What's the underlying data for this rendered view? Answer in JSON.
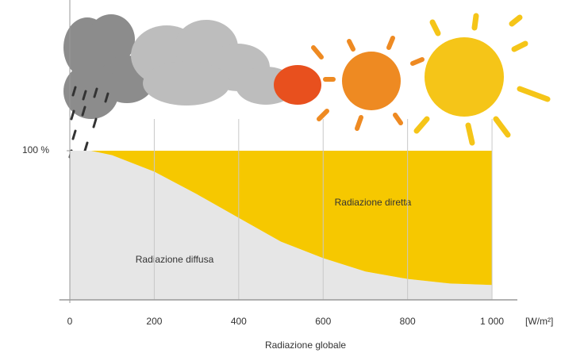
{
  "chart_data": {
    "type": "area",
    "x": [
      0,
      50,
      100,
      200,
      300,
      400,
      500,
      600,
      700,
      800,
      900,
      1000
    ],
    "series": [
      {
        "name": "Radiazione diffusa",
        "color": "#e6e6e6",
        "values": [
          100,
          100,
          97,
          86,
          71,
          55,
          39,
          28,
          19,
          14,
          11,
          10
        ]
      },
      {
        "name": "Radiazione diretta",
        "color": "#f6c800",
        "values": [
          0,
          0,
          3,
          14,
          29,
          45,
          61,
          72,
          81,
          86,
          89,
          90
        ]
      }
    ],
    "stacked": true,
    "x_label": "Radiazione globale",
    "x_unit": "[W/m²]",
    "xlim": [
      -25,
      1060
    ],
    "xticks": [
      0,
      200,
      400,
      600,
      800,
      {
        "value": 1000,
        "label": "1 000"
      }
    ],
    "ylim": [
      0,
      100
    ],
    "yticks": [
      {
        "value": 100,
        "label": "100 %"
      }
    ],
    "grid": true
  }
}
